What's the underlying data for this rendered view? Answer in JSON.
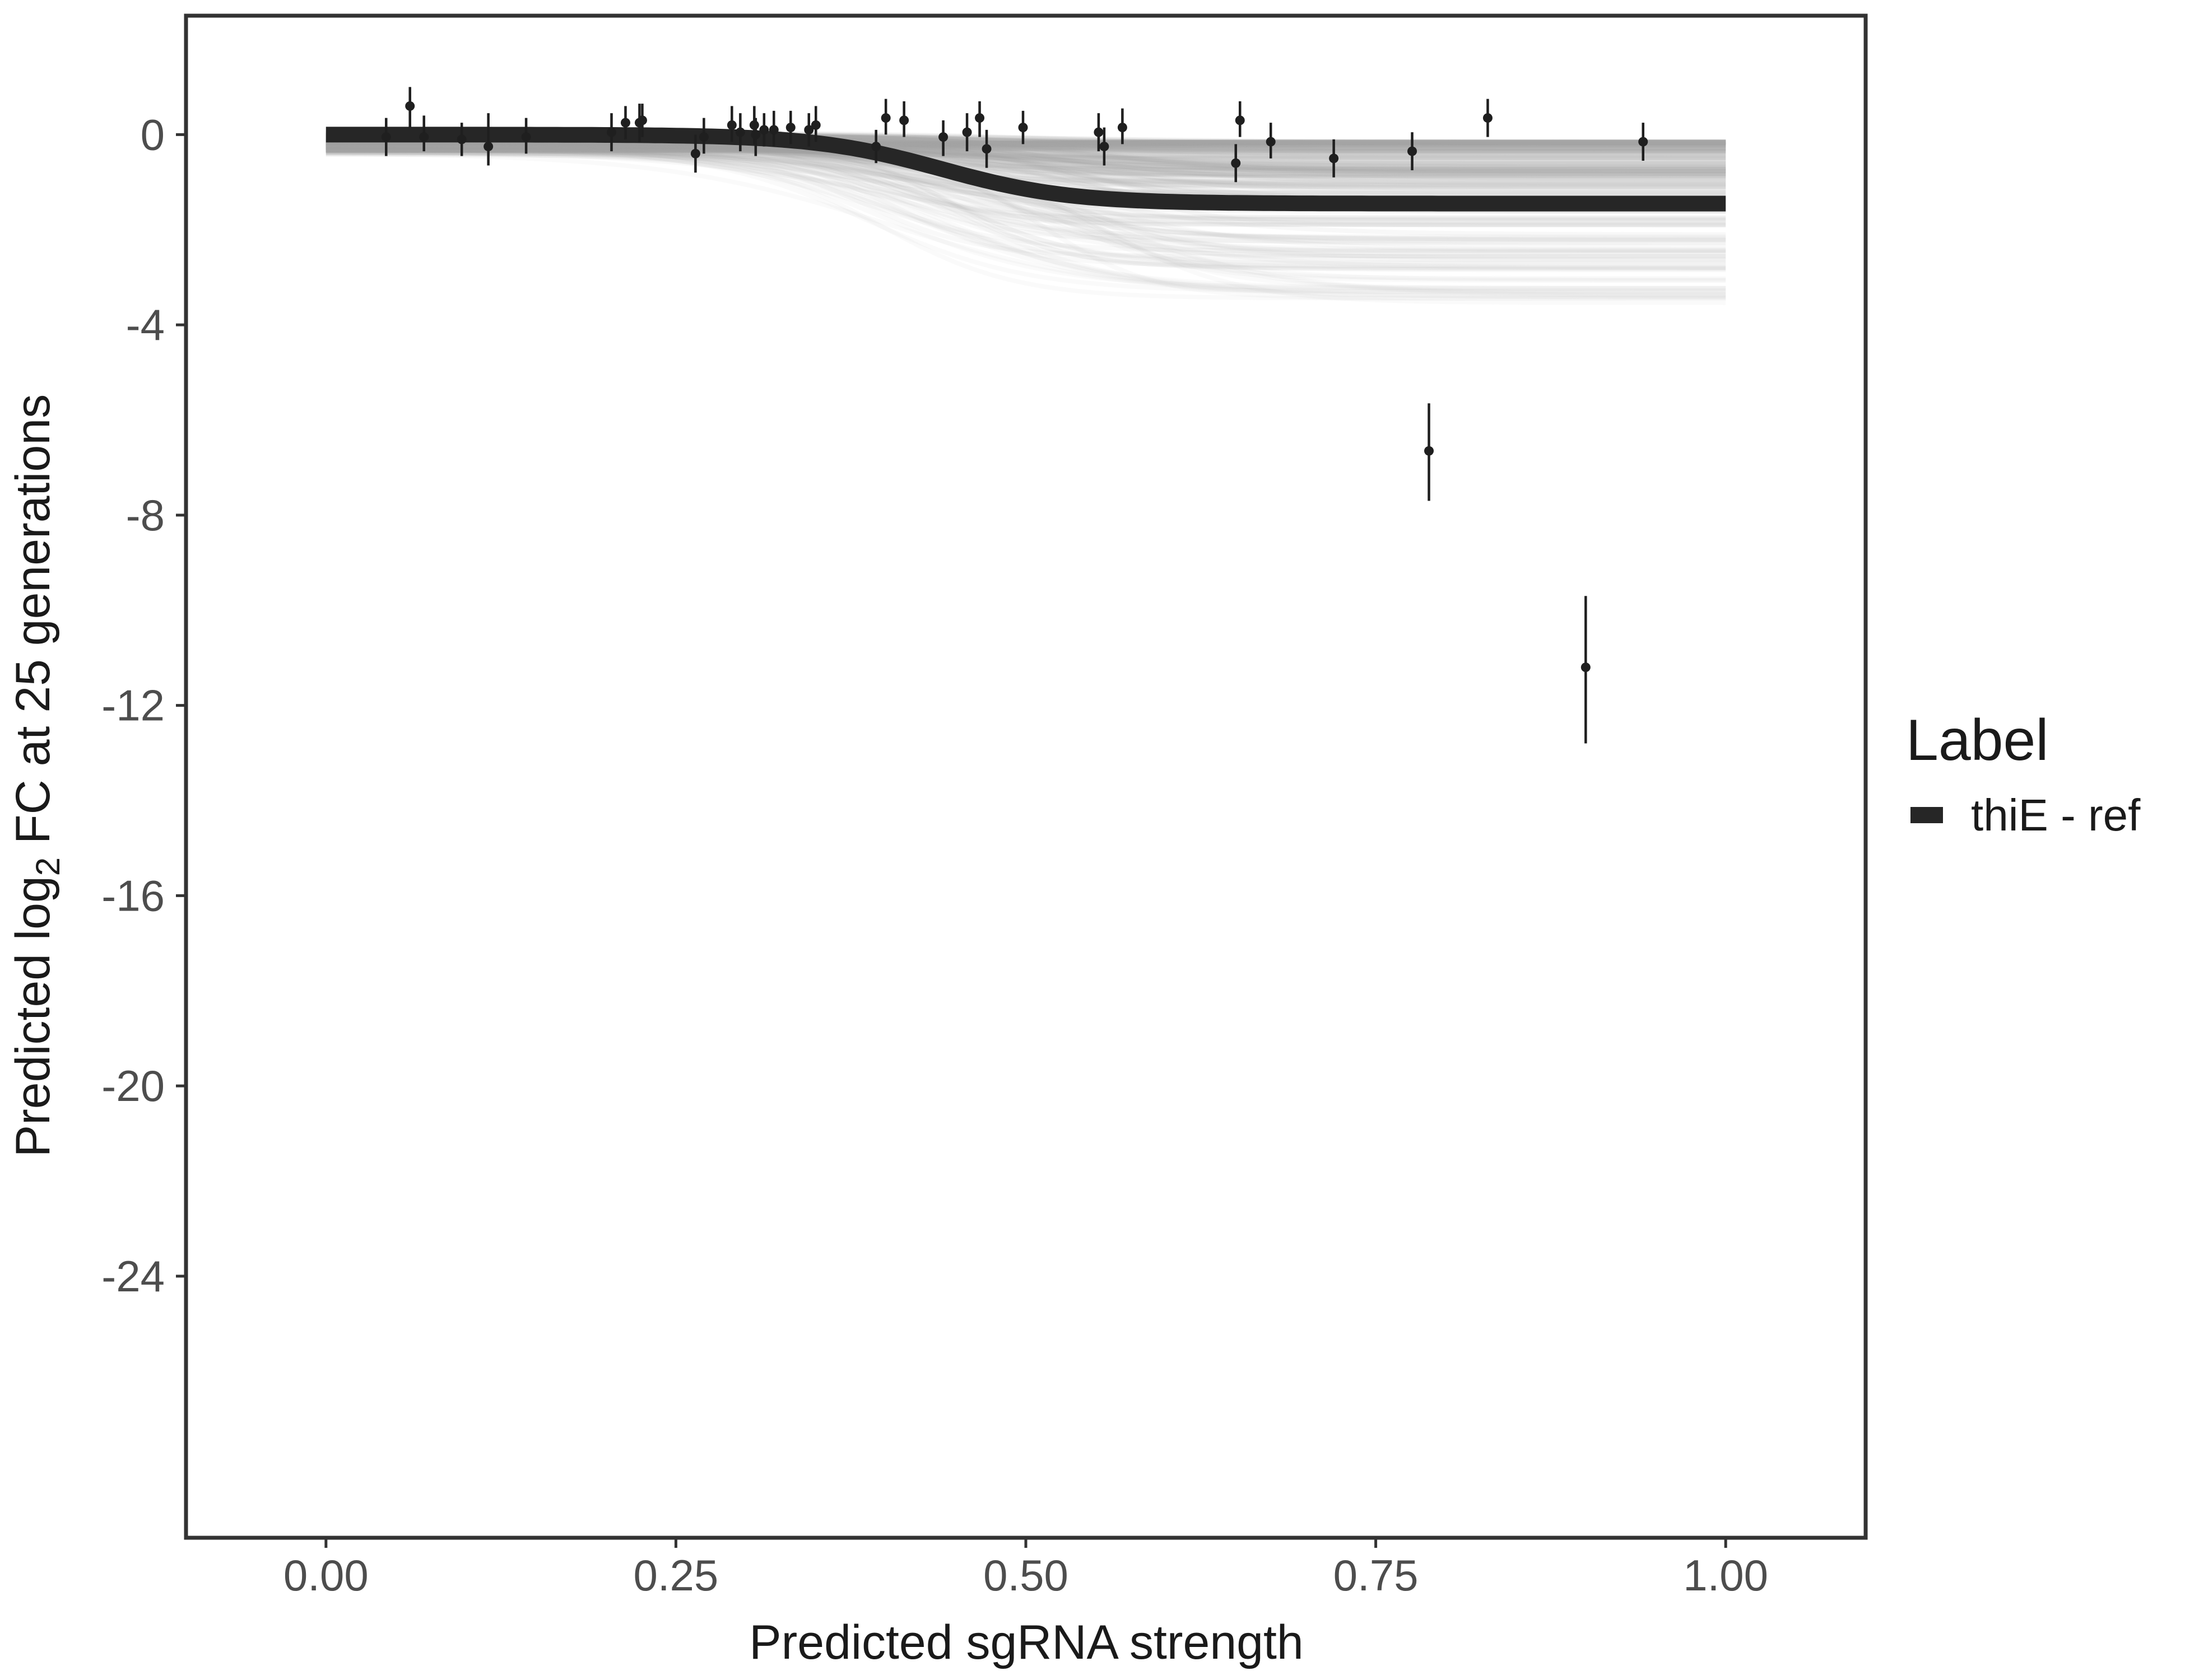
{
  "chart_data": {
    "type": "line",
    "xlabel": "Predicted sgRNA strength",
    "ylabel_prefix": "Predicted  log",
    "ylabel_subscript": "2",
    "ylabel_suffix": " FC at 25 generations",
    "xlim": [
      -0.1,
      1.1
    ],
    "ylim": [
      -29.5,
      2.5
    ],
    "x_ticks": [
      0.0,
      0.25,
      0.5,
      0.75,
      1.0
    ],
    "x_tick_labels": [
      "0.00",
      "0.25",
      "0.50",
      "0.75",
      "1.00"
    ],
    "y_ticks": [
      0,
      -4,
      -8,
      -12,
      -16,
      -20,
      -24
    ],
    "y_tick_labels": [
      "0",
      "-4",
      "-8",
      "-12",
      "-16",
      "-20",
      "-24"
    ],
    "grid": false,
    "legend": {
      "title": "Label",
      "position": "right",
      "entries": [
        {
          "label": "thiE - ref",
          "color": "#262626"
        }
      ]
    },
    "fit_curve": {
      "name": "thiE - ref",
      "color": "#262626",
      "lower_asymptote": -1.45,
      "midpoint": 0.44,
      "slope": 22
    },
    "posterior_band": {
      "color": "#a6a6a6",
      "draws": 220,
      "upper_asymptote_range": [
        -0.15,
        -3.6
      ],
      "start_range": [
        -0.55,
        0.05
      ],
      "midpoint_range": [
        0.38,
        0.56
      ]
    },
    "points": [
      {
        "x": 0.043,
        "y": -0.05,
        "lo": -0.45,
        "hi": 0.35
      },
      {
        "x": 0.06,
        "y": 0.6,
        "lo": 0.15,
        "hi": 1.0
      },
      {
        "x": 0.07,
        "y": -0.05,
        "lo": -0.35,
        "hi": 0.4
      },
      {
        "x": 0.097,
        "y": -0.1,
        "lo": -0.45,
        "hi": 0.25
      },
      {
        "x": 0.116,
        "y": -0.25,
        "lo": -0.65,
        "hi": 0.45
      },
      {
        "x": 0.143,
        "y": -0.05,
        "lo": -0.4,
        "hi": 0.35
      },
      {
        "x": 0.204,
        "y": 0.05,
        "lo": -0.35,
        "hi": 0.45
      },
      {
        "x": 0.214,
        "y": 0.25,
        "lo": -0.1,
        "hi": 0.6
      },
      {
        "x": 0.224,
        "y": 0.25,
        "lo": -0.15,
        "hi": 0.65
      },
      {
        "x": 0.226,
        "y": 0.3,
        "lo": -0.05,
        "hi": 0.65
      },
      {
        "x": 0.264,
        "y": -0.4,
        "lo": -0.8,
        "hi": 0.0
      },
      {
        "x": 0.27,
        "y": -0.05,
        "lo": -0.4,
        "hi": 0.35
      },
      {
        "x": 0.29,
        "y": 0.2,
        "lo": -0.15,
        "hi": 0.6
      },
      {
        "x": 0.296,
        "y": 0.05,
        "lo": -0.35,
        "hi": 0.45
      },
      {
        "x": 0.306,
        "y": 0.2,
        "lo": -0.2,
        "hi": 0.6
      },
      {
        "x": 0.307,
        "y": 0.0,
        "lo": -0.45,
        "hi": 0.35
      },
      {
        "x": 0.313,
        "y": 0.1,
        "lo": -0.25,
        "hi": 0.45
      },
      {
        "x": 0.32,
        "y": 0.1,
        "lo": -0.25,
        "hi": 0.5
      },
      {
        "x": 0.332,
        "y": 0.15,
        "lo": -0.2,
        "hi": 0.5
      },
      {
        "x": 0.345,
        "y": 0.1,
        "lo": -0.25,
        "hi": 0.45
      },
      {
        "x": 0.35,
        "y": 0.2,
        "lo": -0.15,
        "hi": 0.6
      },
      {
        "x": 0.393,
        "y": -0.25,
        "lo": -0.6,
        "hi": 0.1
      },
      {
        "x": 0.4,
        "y": 0.35,
        "lo": 0.0,
        "hi": 0.75
      },
      {
        "x": 0.413,
        "y": 0.3,
        "lo": -0.05,
        "hi": 0.7
      },
      {
        "x": 0.441,
        "y": -0.05,
        "lo": -0.45,
        "hi": 0.3
      },
      {
        "x": 0.458,
        "y": 0.05,
        "lo": -0.35,
        "hi": 0.45
      },
      {
        "x": 0.467,
        "y": 0.35,
        "lo": -0.05,
        "hi": 0.7
      },
      {
        "x": 0.472,
        "y": -0.3,
        "lo": -0.7,
        "hi": 0.1
      },
      {
        "x": 0.498,
        "y": 0.15,
        "lo": -0.2,
        "hi": 0.5
      },
      {
        "x": 0.552,
        "y": 0.05,
        "lo": -0.35,
        "hi": 0.45
      },
      {
        "x": 0.556,
        "y": -0.25,
        "lo": -0.65,
        "hi": 0.15
      },
      {
        "x": 0.569,
        "y": 0.15,
        "lo": -0.2,
        "hi": 0.55
      },
      {
        "x": 0.65,
        "y": -0.6,
        "lo": -1.0,
        "hi": -0.2
      },
      {
        "x": 0.653,
        "y": 0.3,
        "lo": -0.05,
        "hi": 0.7
      },
      {
        "x": 0.675,
        "y": -0.15,
        "lo": -0.5,
        "hi": 0.25
      },
      {
        "x": 0.72,
        "y": -0.5,
        "lo": -0.9,
        "hi": -0.1
      },
      {
        "x": 0.776,
        "y": -0.35,
        "lo": -0.75,
        "hi": 0.05
      },
      {
        "x": 0.788,
        "y": -6.65,
        "lo": -7.7,
        "hi": -5.65
      },
      {
        "x": 0.83,
        "y": 0.35,
        "lo": -0.05,
        "hi": 0.75
      },
      {
        "x": 0.9,
        "y": -11.2,
        "lo": -12.8,
        "hi": -9.7
      },
      {
        "x": 0.941,
        "y": -0.15,
        "lo": -0.55,
        "hi": 0.25
      }
    ]
  }
}
